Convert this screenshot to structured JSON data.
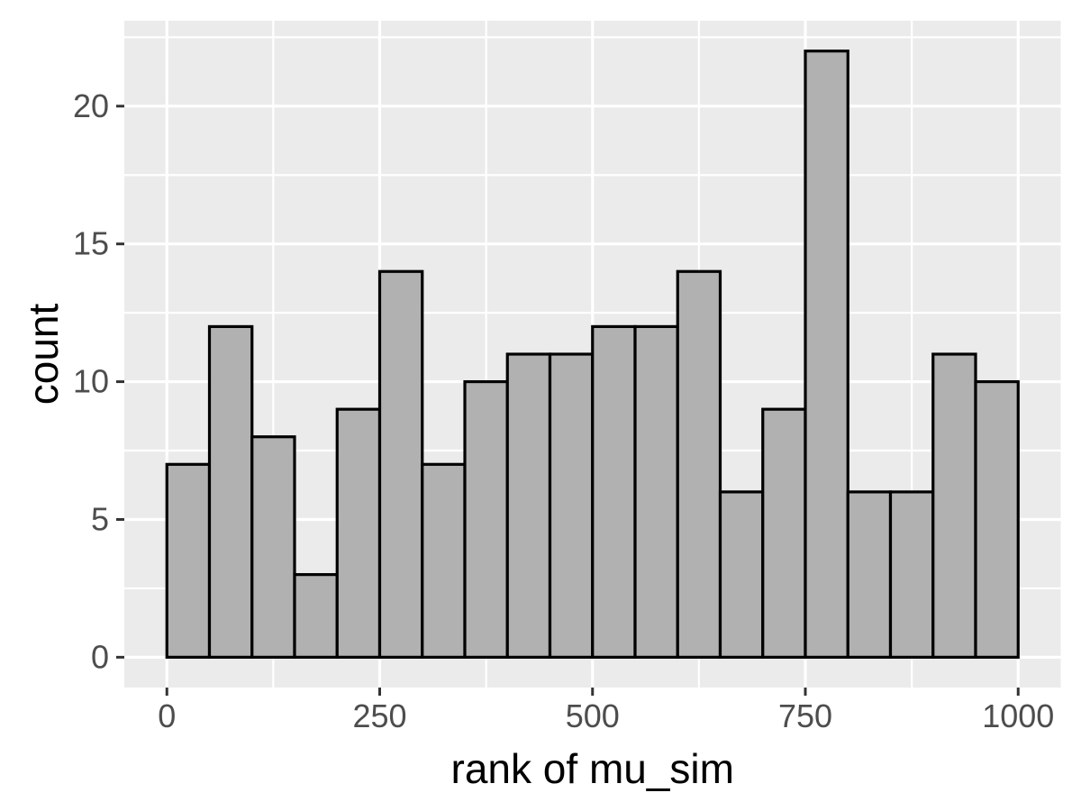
{
  "chart_data": {
    "type": "bar",
    "subtype": "histogram",
    "title": "",
    "xlabel": "rank of mu_sim",
    "ylabel": "count",
    "bins": {
      "start": 0,
      "width": 50,
      "count": 20
    },
    "categories": [
      "0-50",
      "50-100",
      "100-150",
      "150-200",
      "200-250",
      "250-300",
      "300-350",
      "350-400",
      "400-450",
      "450-500",
      "500-550",
      "550-600",
      "600-650",
      "650-700",
      "700-750",
      "750-800",
      "800-850",
      "850-900",
      "900-950",
      "950-1000"
    ],
    "values": [
      7,
      12,
      8,
      3,
      9,
      14,
      7,
      10,
      11,
      11,
      12,
      12,
      14,
      6,
      9,
      22,
      6,
      6,
      11,
      10
    ],
    "x_ticks": [
      0,
      250,
      500,
      750,
      1000
    ],
    "y_ticks": [
      0,
      5,
      10,
      15,
      20
    ],
    "x_minor_ticks": [
      125,
      375,
      625,
      875
    ],
    "y_minor_ticks": [
      2.5,
      7.5,
      12.5,
      17.5,
      22.5
    ],
    "xlim": [
      -50,
      1050
    ],
    "ylim": [
      -1.1,
      23.1
    ],
    "grid": true,
    "legend": "none",
    "style": {
      "background": "#FFFFFF",
      "panel_bg": "#EBEBEB",
      "grid_color": "#FFFFFF",
      "bar_fill": "#B1B1B1",
      "bar_stroke": "#000000",
      "tick_label_color": "#4D4D4D",
      "tick_mark_color": "#333333",
      "axis_title_color": "#000000"
    }
  }
}
